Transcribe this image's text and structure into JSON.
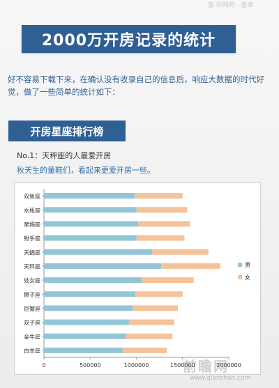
{
  "header": {
    "watermark_top": "查.彩网的 · 查事",
    "title": "2000万开房记录的统计",
    "intro": "好不容易下载下来，在确认没有收录自己的信息后，响应大数据的时代好觉，做了一些简单的统计如下："
  },
  "section": {
    "title": "开房星座排行榜",
    "note1": "No.1：天秤座的人最爱开房",
    "note2": "秋天生的童鞋们，看起来更爱开房一些。"
  },
  "watermark": {
    "brand": "前瞻网",
    "url": "www.qianzhan.com"
  },
  "chart_data": {
    "type": "bar",
    "orientation": "horizontal",
    "stacked": true,
    "categories": [
      "双鱼座",
      "水瓶座",
      "摩羯座",
      "射手座",
      "天蝎座",
      "天秤座",
      "处女座",
      "狮子座",
      "巨蟹座",
      "双子座",
      "金牛座",
      "白羊座"
    ],
    "series": [
      {
        "name": "男",
        "color": "#92c6d6",
        "values": [
          980000,
          1000000,
          1020000,
          1000000,
          1170000,
          1270000,
          1060000,
          990000,
          960000,
          920000,
          890000,
          850000
        ]
      },
      {
        "name": "女",
        "color": "#f4c39c",
        "values": [
          520000,
          550000,
          560000,
          520000,
          610000,
          640000,
          560000,
          510000,
          490000,
          490000,
          500000,
          480000
        ]
      }
    ],
    "xticks": [
      "0",
      "500000",
      "1000000",
      "1500000",
      "2000000"
    ],
    "xlim": [
      0,
      2000000
    ],
    "grid": false,
    "legend": "right"
  }
}
